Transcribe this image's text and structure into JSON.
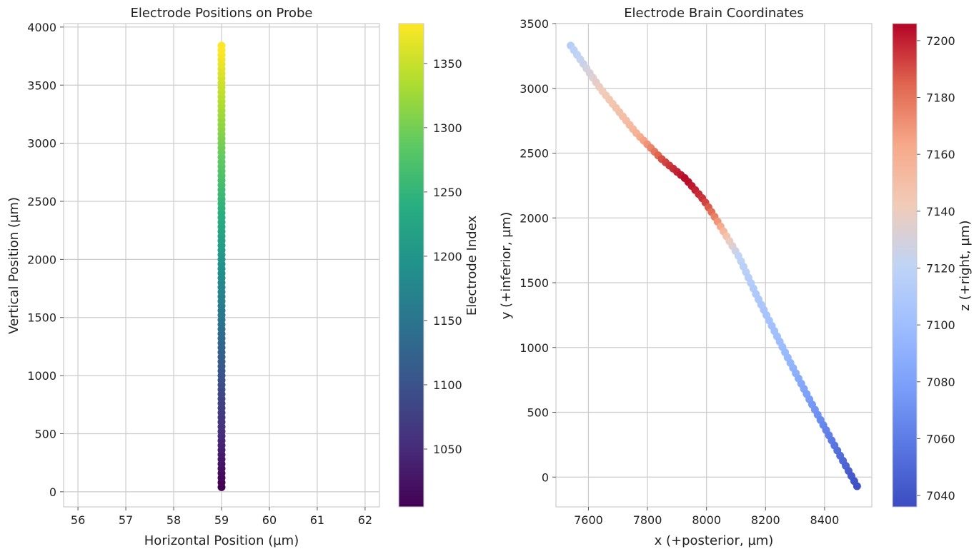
{
  "chart_data": [
    {
      "type": "scatter",
      "title": "Electrode Positions on Probe",
      "xlabel": "Horizontal Position (µm)",
      "ylabel": "Vertical Position (µm)",
      "xlim": [
        55.7,
        62.3
      ],
      "ylim": [
        -130,
        4030
      ],
      "xticks": [
        56,
        57,
        58,
        59,
        60,
        61,
        62
      ],
      "yticks": [
        0,
        500,
        1000,
        1500,
        2000,
        2500,
        3000,
        3500,
        4000
      ],
      "grid": true,
      "colormap": "viridis",
      "series": [
        {
          "x_constant": 59,
          "y_start": 40,
          "y_end": 3840,
          "y_step": 40,
          "color_start": 1005,
          "color_step": 4
        }
      ],
      "colorbar": {
        "label": "Electrode Index",
        "range": [
          1005,
          1381
        ],
        "ticks": [
          1050,
          1100,
          1150,
          1200,
          1250,
          1300,
          1350
        ]
      }
    },
    {
      "type": "scatter",
      "title": "Electrode Brain Coordinates",
      "xlabel": "x (+posterior, µm)",
      "ylabel": "y (+inferior, µm)",
      "xlim": [
        7490,
        8560
      ],
      "ylim": [
        -230,
        3500
      ],
      "xticks": [
        7600,
        7800,
        8000,
        8200,
        8400
      ],
      "yticks": [
        0,
        500,
        1000,
        1500,
        2000,
        2500,
        3000,
        3500
      ],
      "grid": true,
      "colormap": "coolwarm",
      "path": [
        {
          "x": 7540,
          "y": 3330,
          "z": 7115
        },
        {
          "x": 7640,
          "y": 3000,
          "z": 7140
        },
        {
          "x": 7760,
          "y": 2660,
          "z": 7155
        },
        {
          "x": 7850,
          "y": 2450,
          "z": 7190
        },
        {
          "x": 7930,
          "y": 2300,
          "z": 7205
        },
        {
          "x": 7990,
          "y": 2140,
          "z": 7195
        },
        {
          "x": 8030,
          "y": 2000,
          "z": 7175
        },
        {
          "x": 8070,
          "y": 1850,
          "z": 7145
        },
        {
          "x": 8110,
          "y": 1700,
          "z": 7120
        },
        {
          "x": 8170,
          "y": 1400,
          "z": 7110
        },
        {
          "x": 8280,
          "y": 900,
          "z": 7095
        },
        {
          "x": 8360,
          "y": 550,
          "z": 7075
        },
        {
          "x": 8420,
          "y": 300,
          "z": 7060
        },
        {
          "x": 8510,
          "y": -70,
          "z": 7038
        }
      ],
      "n_points": 95,
      "colorbar": {
        "label": "z (+right, µm)",
        "range": [
          7036,
          7206
        ],
        "ticks": [
          7040,
          7060,
          7080,
          7100,
          7120,
          7140,
          7160,
          7180,
          7200
        ]
      }
    }
  ]
}
